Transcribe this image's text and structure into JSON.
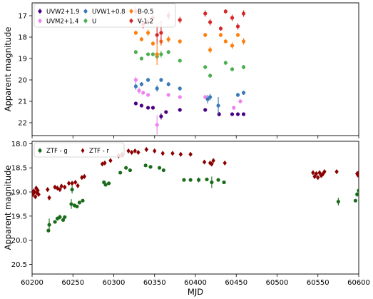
{
  "chart_data": [
    {
      "type": "scatter",
      "ylabel": "Apparent magnitude",
      "xlabel": "",
      "xlim": [
        60200,
        60600
      ],
      "ylim": [
        22.6,
        16.4
      ],
      "y_inverted": true,
      "yticks": [
        17,
        18,
        19,
        20,
        21,
        22
      ],
      "xticks_labeled": false,
      "grid": false,
      "legend": {
        "placement": "top-left",
        "columns": 3
      },
      "series": [
        {
          "name": "UVW2+1.9",
          "color": "#4b0082",
          "marker": "circle",
          "points": [
            [
              60327,
              21.1
            ],
            [
              60334,
              21.2
            ],
            [
              60342,
              21.3
            ],
            [
              60348,
              21.3
            ],
            [
              60358,
              21.7
            ],
            [
              60364,
              21.5
            ],
            [
              60381,
              21.4
            ],
            [
              60412,
              21.4
            ],
            [
              60429,
              21.6
            ],
            [
              60445,
              21.6
            ],
            [
              60452,
              21.6
            ],
            [
              60459,
              21.6
            ]
          ],
          "errors": [
            0.05,
            0.05,
            0.05,
            0.05,
            0.15,
            0.05,
            0.05,
            0.05,
            0.1,
            0.05,
            0.05,
            0.05
          ]
        },
        {
          "name": "UVM2+1.4",
          "color": "#ee82ee",
          "marker": "circle",
          "points": [
            [
              60327,
              20.0
            ],
            [
              60331,
              20.5
            ],
            [
              60336,
              20.6
            ],
            [
              60342,
              20.7
            ],
            [
              60353,
              22.1
            ],
            [
              60367,
              20.7
            ],
            [
              60381,
              20.8
            ],
            [
              60412,
              20.8
            ],
            [
              60447,
              21.3
            ],
            [
              60455,
              21.0
            ]
          ],
          "errors": [
            0.15,
            0.15,
            0.05,
            0.05,
            0.45,
            0.05,
            0.05,
            0.1,
            0.1,
            0.1
          ]
        },
        {
          "name": "UVW1+0.8",
          "color": "#3a7ab8",
          "marker": "circle",
          "points": [
            [
              60327,
              20.3
            ],
            [
              60334,
              20.2
            ],
            [
              60342,
              20.0
            ],
            [
              60353,
              20.4
            ],
            [
              60358,
              20.0
            ],
            [
              60367,
              20.2
            ],
            [
              60381,
              20.4
            ],
            [
              60415,
              20.9
            ],
            [
              60418,
              20.8
            ],
            [
              60428,
              21.2
            ],
            [
              60452,
              20.7
            ],
            [
              60459,
              20.6
            ]
          ],
          "errors": [
            0.15,
            0.1,
            0.1,
            0.15,
            0.1,
            0.1,
            0.1,
            0.2,
            0.15,
            0.4,
            0.1,
            0.1
          ]
        },
        {
          "name": "U",
          "color": "#4caf50",
          "marker": "circle",
          "points": [
            [
              60327,
              18.7
            ],
            [
              60334,
              19.0
            ],
            [
              60342,
              18.8
            ],
            [
              60348,
              18.8
            ],
            [
              60353,
              18.9
            ],
            [
              60358,
              18.8
            ],
            [
              60367,
              18.7
            ],
            [
              60381,
              19.1
            ],
            [
              60412,
              19.4
            ],
            [
              60418,
              19.8
            ],
            [
              60437,
              19.2
            ],
            [
              60445,
              19.5
            ],
            [
              60459,
              19.4
            ]
          ],
          "errors": [
            0.1,
            0.05,
            0.05,
            0.05,
            0.15,
            0.15,
            0.1,
            0.05,
            0.1,
            0.1,
            0.1,
            0.1,
            0.1
          ]
        },
        {
          "name": "B-0.5",
          "color": "#ff7f0e",
          "marker": "circle",
          "points": [
            [
              60327,
              17.8
            ],
            [
              60334,
              18.1
            ],
            [
              60342,
              17.8
            ],
            [
              60348,
              18.3
            ],
            [
              60353,
              18.8
            ],
            [
              60358,
              18.2
            ],
            [
              60367,
              18.1
            ],
            [
              60381,
              18.2
            ],
            [
              60412,
              17.9
            ],
            [
              60418,
              18.6
            ],
            [
              60431,
              17.9
            ],
            [
              60437,
              18.2
            ],
            [
              60445,
              18.4
            ],
            [
              60452,
              17.9
            ],
            [
              60459,
              18.2
            ]
          ],
          "errors": [
            0.1,
            0.1,
            0.15,
            0.1,
            0.5,
            0.2,
            0.15,
            0.1,
            0.1,
            0.15,
            0.1,
            0.1,
            0.15,
            0.1,
            0.15
          ]
        },
        {
          "name": "V-1.2",
          "color": "#d62728",
          "marker": "circle",
          "points": [
            [
              60327,
              16.8
            ],
            [
              60331,
              17.2
            ],
            [
              60336,
              17.4
            ],
            [
              60342,
              17.3
            ],
            [
              60348,
              17.1
            ],
            [
              60353,
              17.9
            ],
            [
              60358,
              17.8
            ],
            [
              60367,
              17.0
            ],
            [
              60381,
              17.2
            ],
            [
              60412,
              16.9
            ],
            [
              60418,
              17.3
            ],
            [
              60431,
              17.6
            ],
            [
              60437,
              16.8
            ],
            [
              60445,
              17.1
            ],
            [
              60452,
              17.5
            ],
            [
              60459,
              16.9
            ]
          ],
          "errors": [
            0.2,
            0.15,
            0.2,
            0.15,
            0.15,
            0.4,
            0.55,
            0.2,
            0.15,
            0.15,
            0.15,
            0.1,
            0.1,
            0.15,
            0.15,
            0.15
          ]
        }
      ]
    },
    {
      "type": "scatter",
      "ylabel": "Apparent magnitude",
      "xlabel": "MJD",
      "xlim": [
        60200,
        60600
      ],
      "ylim": [
        20.7,
        17.95
      ],
      "y_inverted": true,
      "yticks": [
        18.0,
        18.5,
        19.0,
        19.5,
        20.0,
        20.5
      ],
      "xticks": [
        60200,
        60250,
        60300,
        60350,
        60400,
        60450,
        60500,
        60550,
        60600
      ],
      "grid": false,
      "legend": {
        "placement": "top-left",
        "columns": 2
      },
      "series": [
        {
          "name": "ZTF - g",
          "color": "#1a6b1a",
          "marker": "circle",
          "points": [
            [
              60220,
              19.8
            ],
            [
              60221,
              19.68
            ],
            [
              60228,
              19.62
            ],
            [
              60231,
              19.55
            ],
            [
              60234,
              19.52
            ],
            [
              60238,
              19.58
            ],
            [
              60240,
              19.52
            ],
            [
              60248,
              19.25
            ],
            [
              60249,
              18.95
            ],
            [
              60252,
              19.28
            ],
            [
              60255,
              19.3
            ],
            [
              60258,
              19.22
            ],
            [
              60262,
              19.18
            ],
            [
              60288,
              18.8
            ],
            [
              60290,
              18.85
            ],
            [
              60294,
              18.82
            ],
            [
              60308,
              18.6
            ],
            [
              60315,
              18.5
            ],
            [
              60320,
              18.55
            ],
            [
              60339,
              18.45
            ],
            [
              60345,
              18.48
            ],
            [
              60356,
              18.5
            ],
            [
              60361,
              18.55
            ],
            [
              60386,
              18.75
            ],
            [
              60394,
              18.75
            ],
            [
              60404,
              18.75
            ],
            [
              60414,
              18.74
            ],
            [
              60420,
              18.8
            ],
            [
              60428,
              18.75
            ],
            [
              60435,
              18.8
            ],
            [
              60575,
              19.2
            ],
            [
              60596,
              19.18
            ],
            [
              60598,
              19.05
            ],
            [
              60600,
              18.97
            ]
          ],
          "errors": [
            0.03,
            0.13,
            0.03,
            0.04,
            0.05,
            0.04,
            0.03,
            0.1,
            0.08,
            0.04,
            0.03,
            0.03,
            0.03,
            0.04,
            0.03,
            0.03,
            0.03,
            0.03,
            0.03,
            0.03,
            0.03,
            0.03,
            0.03,
            0.03,
            0.03,
            0.05,
            0.03,
            0.12,
            0.03,
            0.03,
            0.08,
            0.03,
            0.05,
            0.05
          ]
        },
        {
          "name": "ZTF - r",
          "color": "#8b0000",
          "marker": "diamond",
          "points": [
            [
              60201,
              19.05
            ],
            [
              60202,
              18.98
            ],
            [
              60203,
              19.0
            ],
            [
              60204,
              19.1
            ],
            [
              60205,
              18.92
            ],
            [
              60206,
              19.02
            ],
            [
              60207,
              18.97
            ],
            [
              60208,
              19.05
            ],
            [
              60219,
              18.95
            ],
            [
              60221,
              19.12
            ],
            [
              60228,
              18.9
            ],
            [
              60231,
              18.92
            ],
            [
              60234,
              18.95
            ],
            [
              60236,
              18.88
            ],
            [
              60240,
              18.9
            ],
            [
              60245,
              18.82
            ],
            [
              60249,
              18.82
            ],
            [
              60253,
              18.8
            ],
            [
              60256,
              18.87
            ],
            [
              60261,
              18.7
            ],
            [
              60264,
              18.68
            ],
            [
              60286,
              18.42
            ],
            [
              60289,
              18.4
            ],
            [
              60296,
              18.35
            ],
            [
              60306,
              18.25
            ],
            [
              60310,
              18.22
            ],
            [
              60318,
              18.15
            ],
            [
              60322,
              18.18
            ],
            [
              60326,
              18.15
            ],
            [
              60330,
              18.18
            ],
            [
              60340,
              18.12
            ],
            [
              60350,
              18.15
            ],
            [
              60360,
              18.2
            ],
            [
              60372,
              18.2
            ],
            [
              60382,
              18.22
            ],
            [
              60394,
              18.22
            ],
            [
              60411,
              18.38
            ],
            [
              60418,
              18.4
            ],
            [
              60420,
              18.42
            ],
            [
              60422,
              18.35
            ],
            [
              60436,
              18.4
            ],
            [
              60544,
              18.6
            ],
            [
              60546,
              18.68
            ],
            [
              60548,
              18.62
            ],
            [
              60550,
              18.7
            ],
            [
              60552,
              18.6
            ],
            [
              60554,
              18.66
            ],
            [
              60556,
              18.63
            ],
            [
              60558,
              18.58
            ],
            [
              60573,
              18.58
            ],
            [
              60598,
              18.62
            ],
            [
              60599,
              18.65
            ],
            [
              60600,
              18.6
            ]
          ],
          "errors": [
            0.02,
            0.02,
            0.02,
            0.03,
            0.02,
            0.02,
            0.02,
            0.02,
            0.03,
            0.05,
            0.02,
            0.02,
            0.02,
            0.02,
            0.02,
            0.02,
            0.02,
            0.02,
            0.02,
            0.02,
            0.02,
            0.02,
            0.02,
            0.02,
            0.02,
            0.02,
            0.02,
            0.02,
            0.02,
            0.02,
            0.02,
            0.02,
            0.02,
            0.02,
            0.02,
            0.02,
            0.03,
            0.03,
            0.05,
            0.03,
            0.03,
            0.04,
            0.04,
            0.04,
            0.04,
            0.04,
            0.04,
            0.04,
            0.04,
            0.04,
            0.03,
            0.03,
            0.03
          ]
        }
      ]
    }
  ]
}
